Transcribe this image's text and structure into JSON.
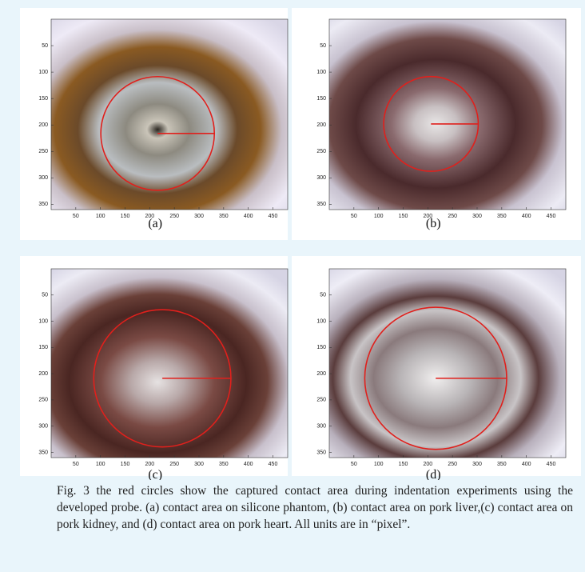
{
  "figure": {
    "panels": [
      {
        "label": "(a)",
        "xlim": [
          0,
          480
        ],
        "ylim": [
          0,
          360
        ],
        "xticks": [
          50,
          100,
          150,
          200,
          250,
          300,
          350,
          400,
          450
        ],
        "yticks": [
          50,
          100,
          150,
          200,
          250,
          300,
          350
        ]
      },
      {
        "label": "(b)",
        "xlim": [
          0,
          480
        ],
        "ylim": [
          0,
          360
        ],
        "xticks": [
          50,
          100,
          150,
          200,
          250,
          300,
          350,
          400,
          450
        ],
        "yticks": [
          50,
          100,
          150,
          200,
          250,
          300,
          350
        ]
      },
      {
        "label": "(c)",
        "xlim": [
          0,
          480
        ],
        "ylim": [
          0,
          360
        ],
        "xticks": [
          50,
          100,
          150,
          200,
          250,
          300,
          350,
          400,
          450
        ],
        "yticks": [
          50,
          100,
          150,
          200,
          250,
          300,
          350
        ]
      },
      {
        "label": "(d)",
        "xlim": [
          0,
          480
        ],
        "ylim": [
          0,
          360
        ],
        "xticks": [
          50,
          100,
          150,
          200,
          250,
          300,
          350,
          400,
          450
        ],
        "yticks": [
          50,
          100,
          150,
          200,
          250,
          300,
          350
        ]
      }
    ],
    "caption": "Fig. 3 the red circles show the captured contact area during indentation experiments using the developed probe. (a) contact area on silicone phantom, (b) contact area on pork liver,(c) contact area on pork kidney, and (d) contact area on pork heart. All units are in “pixel”."
  }
}
